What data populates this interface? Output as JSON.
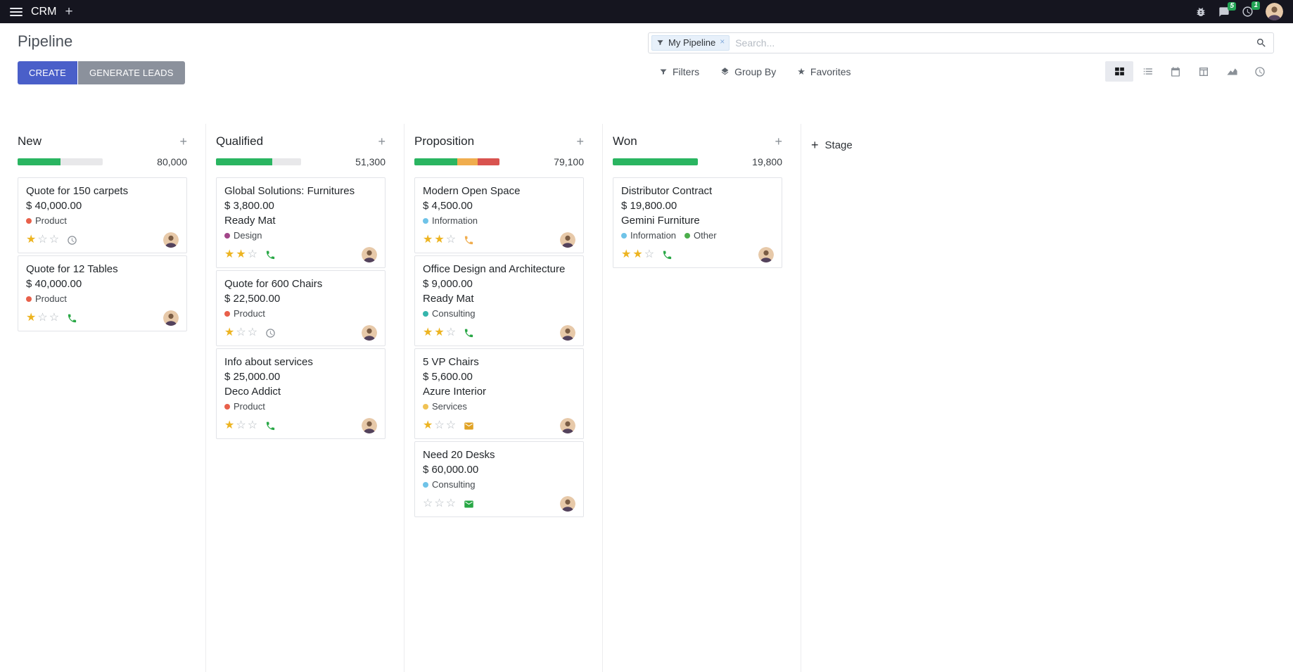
{
  "colors": {
    "topbar_bg": "#15151f",
    "accent": "#4a5fc9",
    "secondary_btn": "#8b919c",
    "badge_green": "#23a455",
    "star_gold": "#edb421",
    "progress_bg": "#e8e8ea"
  },
  "topbar": {
    "app_name": "CRM",
    "messages_badge": "5",
    "activities_badge": "1"
  },
  "control_panel": {
    "title": "Pipeline",
    "create_label": "CREATE",
    "generate_leads_label": "GENERATE LEADS",
    "search": {
      "facet_label": "My Pipeline",
      "remove_label": "×",
      "placeholder": "Search..."
    },
    "menus": {
      "filters": "Filters",
      "group_by": "Group By",
      "favorites": "Favorites"
    },
    "view_switcher_icons": [
      "kanban",
      "list",
      "calendar",
      "pivot",
      "graph",
      "activity"
    ]
  },
  "board": {
    "add_stage_label": "Stage",
    "quick_add_label": "+",
    "columns": [
      {
        "name": "New",
        "total": "80,000",
        "progress": [
          {
            "color": "#2ab561",
            "pct": 50
          }
        ],
        "cards": [
          {
            "title": "Quote for 150 carpets",
            "amount": "$ 40,000.00",
            "tags": [
              {
                "label": "Product",
                "color": "#e8604a"
              }
            ],
            "stars_filled": "★",
            "stars_empty": "☆☆",
            "activity": {
              "icon": "clock",
              "name": "activity-clock-icon",
              "color": "#8a9097"
            }
          },
          {
            "title": "Quote for 12 Tables",
            "amount": "$ 40,000.00",
            "tags": [
              {
                "label": "Product",
                "color": "#e8604a"
              }
            ],
            "stars_filled": "★",
            "stars_empty": "☆☆",
            "activity": {
              "icon": "phone",
              "name": "activity-phone-icon",
              "color": "#28a745"
            }
          }
        ]
      },
      {
        "name": "Qualified",
        "total": "51,300",
        "progress": [
          {
            "color": "#2ab561",
            "pct": 66
          }
        ],
        "cards": [
          {
            "title": "Global Solutions: Furnitures",
            "amount": "$ 3,800.00",
            "customer": "Ready Mat",
            "tags": [
              {
                "label": "Design",
                "color": "#a24689"
              }
            ],
            "stars_filled": "★★",
            "stars_empty": "☆",
            "activity": {
              "icon": "phone",
              "name": "activity-phone-icon",
              "color": "#28a745"
            }
          },
          {
            "title": "Quote for 600 Chairs",
            "amount": "$ 22,500.00",
            "tags": [
              {
                "label": "Product",
                "color": "#e8604a"
              }
            ],
            "stars_filled": "★",
            "stars_empty": "☆☆",
            "activity": {
              "icon": "clock",
              "name": "activity-clock-icon",
              "color": "#8a9097"
            }
          },
          {
            "title": "Info about services",
            "amount": "$ 25,000.00",
            "customer": "Deco Addict",
            "tags": [
              {
                "label": "Product",
                "color": "#e8604a"
              }
            ],
            "stars_filled": "★",
            "stars_empty": "☆☆",
            "activity": {
              "icon": "phone",
              "name": "activity-phone-icon",
              "color": "#28a745"
            }
          }
        ]
      },
      {
        "name": "Proposition",
        "total": "79,100",
        "progress": [
          {
            "color": "#2ab561",
            "pct": 50
          },
          {
            "color": "#f0ad4e",
            "pct": 24
          },
          {
            "color": "#d9534f",
            "pct": 26
          }
        ],
        "cards": [
          {
            "title": "Modern Open Space",
            "amount": "$ 4,500.00",
            "tags": [
              {
                "label": "Information",
                "color": "#6fc3e8"
              }
            ],
            "stars_filled": "★★",
            "stars_empty": "☆",
            "activity": {
              "icon": "phone",
              "name": "activity-phone-icon",
              "color": "#f0ad4e"
            }
          },
          {
            "title": "Office Design and Architecture",
            "amount": "$ 9,000.00",
            "customer": "Ready Mat",
            "tags": [
              {
                "label": "Consulting",
                "color": "#35b5ac"
              }
            ],
            "stars_filled": "★★",
            "stars_empty": "☆",
            "activity": {
              "icon": "phone",
              "name": "activity-phone-icon",
              "color": "#28a745"
            }
          },
          {
            "title": "5 VP Chairs",
            "amount": "$ 5,600.00",
            "customer": "Azure Interior",
            "tags": [
              {
                "label": "Services",
                "color": "#f0c254"
              }
            ],
            "stars_filled": "★",
            "stars_empty": "☆☆",
            "activity": {
              "icon": "mail",
              "name": "activity-mail-icon",
              "color": "#e0a224"
            }
          },
          {
            "title": "Need 20 Desks",
            "amount": "$ 60,000.00",
            "tags": [
              {
                "label": "Consulting",
                "color": "#6fc3e8"
              }
            ],
            "stars_filled": "",
            "stars_empty": "☆☆☆",
            "activity": {
              "icon": "mail",
              "name": "activity-mail-icon",
              "color": "#28a745"
            }
          }
        ]
      },
      {
        "name": "Won",
        "total": "19,800",
        "progress": [
          {
            "color": "#2ab561",
            "pct": 100
          }
        ],
        "cards": [
          {
            "title": "Distributor Contract",
            "amount": "$ 19,800.00",
            "customer": "Gemini Furniture",
            "tags": [
              {
                "label": "Information",
                "color": "#6fc3e8"
              },
              {
                "label": "Other",
                "color": "#4cae4c"
              }
            ],
            "stars_filled": "★★",
            "stars_empty": "☆",
            "activity": {
              "icon": "phone",
              "name": "activity-phone-icon",
              "color": "#28a745"
            }
          }
        ]
      }
    ]
  }
}
